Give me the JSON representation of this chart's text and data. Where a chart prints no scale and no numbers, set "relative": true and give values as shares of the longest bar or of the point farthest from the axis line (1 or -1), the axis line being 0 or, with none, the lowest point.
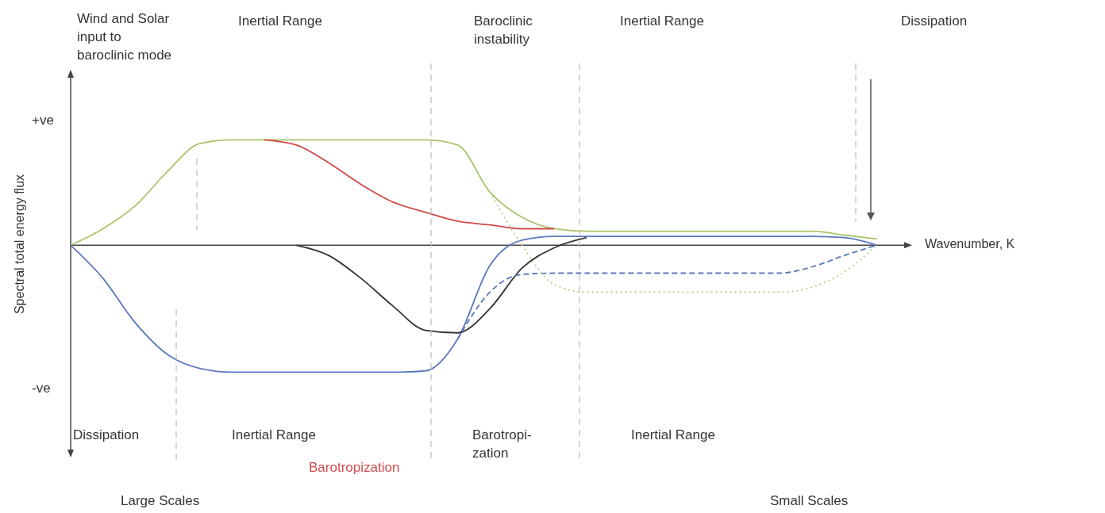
{
  "chart_data": {
    "type": "line",
    "relative": true,
    "xlabel": "Wavenumber, K",
    "ylabel": "Spectral total energy flux",
    "categories": [
      null,
      null,
      null,
      null,
      null,
      null,
      null,
      null,
      null,
      null,
      null,
      null,
      null,
      null,
      null,
      null,
      null,
      null,
      null,
      null,
      null,
      null,
      null,
      null,
      null,
      null
    ],
    "series": [
      {
        "color": "#a9c46a",
        "line_style": "solid",
        "values": [
          0,
          0.13,
          0.31,
          0.58,
          0.8,
          0.83,
          0.83,
          0.83,
          0.83,
          0.83,
          0.83,
          0.83,
          0.79,
          0.42,
          0.22,
          0.13,
          0.11,
          0.11,
          0.11,
          0.11,
          0.11,
          0.11,
          0.11,
          0.11,
          0.08,
          0.05
        ]
      },
      {
        "color": "#d24a4a",
        "line_style": "solid",
        "values": [
          null,
          null,
          null,
          null,
          null,
          null,
          0.83,
          0.79,
          0.65,
          0.48,
          0.34,
          0.26,
          0.19,
          0.16,
          0.13,
          0.13,
          null,
          null,
          null,
          null,
          null,
          null,
          null,
          null,
          null,
          null
        ]
      },
      {
        "color": "#5a78bf",
        "line_style": "solid",
        "values": [
          0,
          -0.26,
          -0.61,
          -0.86,
          -0.97,
          -1,
          -1,
          -1,
          -1,
          -1,
          -1,
          -0.99,
          -0.74,
          -0.16,
          0.04,
          0.07,
          0.07,
          0.07,
          0.07,
          0.07,
          0.07,
          0.07,
          0.07,
          0.07,
          0.06,
          0
        ]
      },
      {
        "color": "#333333",
        "line_style": "solid",
        "values": [
          null,
          null,
          null,
          null,
          null,
          null,
          null,
          0,
          -0.08,
          -0.26,
          -0.48,
          -0.67,
          -0.69,
          -0.5,
          -0.18,
          -0.02,
          0.06,
          null,
          null,
          null,
          null,
          null,
          null,
          null,
          null,
          null
        ]
      },
      {
        "color": "#5a78bf",
        "line_style": "dashed",
        "values": [
          null,
          null,
          null,
          null,
          null,
          null,
          null,
          null,
          null,
          null,
          null,
          null,
          -0.74,
          -0.37,
          -0.23,
          -0.22,
          -0.22,
          -0.22,
          -0.22,
          -0.22,
          -0.22,
          -0.22,
          -0.22,
          -0.17,
          -0.08,
          0
        ]
      },
      {
        "color": "#b8cc80",
        "line_style": "dotted",
        "values": [
          null,
          null,
          null,
          null,
          null,
          null,
          null,
          null,
          null,
          null,
          null,
          null,
          null,
          0.42,
          0,
          -0.31,
          -0.37,
          -0.37,
          -0.37,
          -0.37,
          -0.37,
          -0.37,
          -0.37,
          -0.33,
          -0.21,
          0
        ]
      }
    ],
    "annotations": [
      "Wind and Solar input to baroclinic mode",
      "Inertial Range",
      "Baroclinic instability",
      "Inertial Range",
      "Dissipation",
      "+ve",
      "-ve",
      "Dissipation",
      "Inertial Range",
      "Barotropization",
      "Barotropi-\nzation",
      "Inertial Range",
      "Large Scales",
      "Small Scales"
    ]
  }
}
